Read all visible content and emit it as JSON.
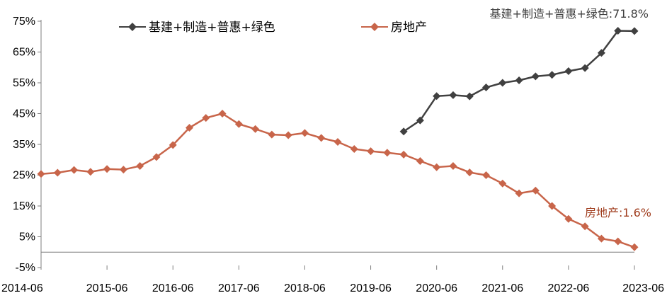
{
  "chart_data": {
    "type": "line",
    "x_labels": [
      "2014-06",
      "2015-06",
      "2016-06",
      "2017-06",
      "2018-06",
      "2019-06",
      "2020-06",
      "2021-06",
      "2022-06",
      "2023-06"
    ],
    "yticks": [
      "75%",
      "65%",
      "55%",
      "45%",
      "35%",
      "25%",
      "15%",
      "5%",
      "-5%"
    ],
    "ylim": [
      -5,
      75
    ],
    "quarters": [
      "2014-06",
      "2014-09",
      "2014-12",
      "2015-03",
      "2015-06",
      "2015-09",
      "2015-12",
      "2016-03",
      "2016-06",
      "2016-09",
      "2016-12",
      "2017-03",
      "2017-06",
      "2017-09",
      "2017-12",
      "2018-03",
      "2018-06",
      "2018-09",
      "2018-12",
      "2019-03",
      "2019-06",
      "2019-09",
      "2019-12",
      "2020-03",
      "2020-06",
      "2020-09",
      "2020-12",
      "2021-03",
      "2021-06",
      "2021-09",
      "2021-12",
      "2022-03",
      "2022-06",
      "2022-09",
      "2022-12",
      "2023-03",
      "2023-06"
    ],
    "series": [
      {
        "name": "基建+制造+普惠+绿色",
        "color": "#404040",
        "marker": "diamond",
        "values": [
          null,
          null,
          null,
          null,
          null,
          null,
          null,
          null,
          null,
          null,
          null,
          null,
          null,
          null,
          null,
          null,
          null,
          null,
          null,
          null,
          null,
          null,
          39.2,
          42.8,
          50.7,
          51.0,
          50.6,
          53.5,
          55.0,
          55.8,
          57.1,
          57.6,
          58.8,
          59.8,
          64.7,
          71.9,
          71.8
        ]
      },
      {
        "name": "房地产",
        "color": "#C8654A",
        "marker": "diamond",
        "values": [
          25.4,
          25.8,
          26.7,
          26.1,
          27.0,
          26.8,
          28.0,
          30.9,
          34.8,
          40.4,
          43.6,
          45.0,
          41.6,
          40.0,
          38.2,
          38.0,
          38.7,
          37.1,
          35.8,
          33.5,
          32.8,
          32.3,
          31.7,
          29.6,
          27.6,
          28.0,
          25.9,
          25.0,
          22.3,
          19.1,
          20.0,
          15.0,
          10.8,
          8.4,
          4.4,
          3.5,
          1.6
        ]
      }
    ],
    "annotations": [
      {
        "text": "基建+制造+普惠+绿色:71.8%",
        "series": 0,
        "color": "#404040"
      },
      {
        "text": "房地产:1.6%",
        "series": 1,
        "color": "#A03D1E"
      }
    ],
    "legend_position": "top",
    "grid": false
  }
}
